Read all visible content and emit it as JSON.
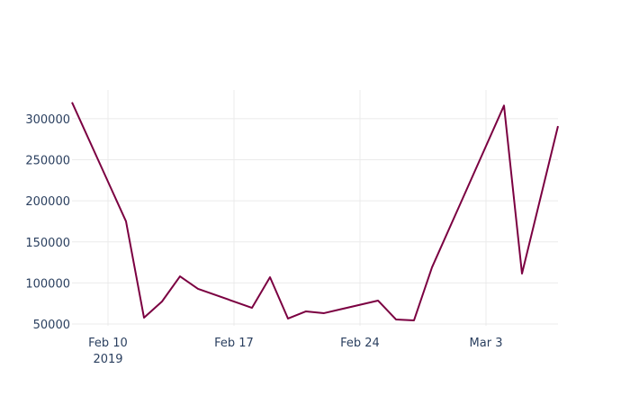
{
  "chart_data": {
    "type": "line",
    "x": [
      "2019-02-08",
      "2019-02-11",
      "2019-02-12",
      "2019-02-13",
      "2019-02-14",
      "2019-02-15",
      "2019-02-18",
      "2019-02-19",
      "2019-02-20",
      "2019-02-21",
      "2019-02-22",
      "2019-02-25",
      "2019-02-26",
      "2019-02-27",
      "2019-02-28",
      "2019-03-04",
      "2019-03-05",
      "2019-03-07"
    ],
    "series": [
      {
        "color": "#7b0041",
        "values": [
          320000,
          175000,
          57700,
          77400,
          108000,
          92800,
          69700,
          107000,
          56600,
          65400,
          63200,
          78500,
          55500,
          54400,
          119000,
          316000,
          111400,
          291000
        ]
      }
    ],
    "xlim": [
      "2019-02-08",
      "2019-03-07"
    ],
    "xticks": [
      {
        "value": "2019-02-10",
        "label": "Feb 10\n2019"
      },
      {
        "value": "2019-02-17",
        "label": "Feb 17"
      },
      {
        "value": "2019-02-24",
        "label": "Feb 24"
      },
      {
        "value": "2019-03-03",
        "label": "Mar 3"
      }
    ],
    "ylim": [
      47800,
      335000
    ],
    "yticks": [
      50000,
      100000,
      150000,
      200000,
      250000,
      300000
    ],
    "grid": true
  }
}
